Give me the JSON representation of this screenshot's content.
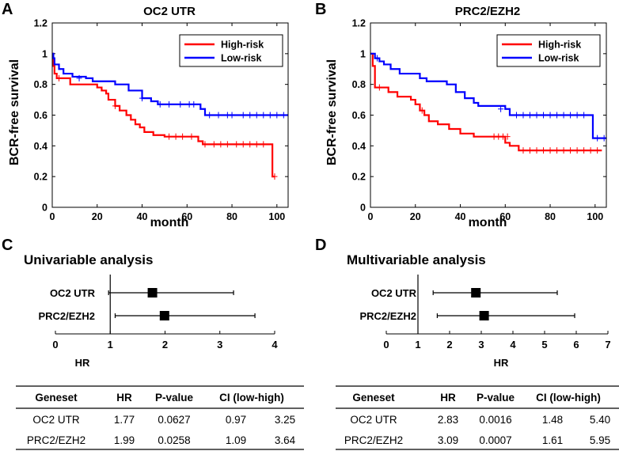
{
  "panels": {
    "a": "A",
    "b": "B",
    "c": "C",
    "d": "D"
  },
  "colors": {
    "high": "#ff0000",
    "low": "#0000ff",
    "axis": "#000000"
  },
  "chart_data": [
    {
      "id": "km-oc2",
      "type": "line",
      "title": "OC2 UTR",
      "xlabel": "month",
      "ylabel": "BCR-free survival",
      "xlim": [
        0,
        105
      ],
      "ylim": [
        0,
        1.2
      ],
      "xticks": [
        0,
        20,
        40,
        60,
        80,
        100
      ],
      "yticks": [
        0,
        0.2,
        0.4,
        0.6,
        0.8,
        1,
        1.2
      ],
      "legend": [
        "High-risk",
        "Low-risk"
      ],
      "series": [
        {
          "name": "High-risk",
          "color": "#ff0000",
          "steps": [
            [
              0,
              1
            ],
            [
              0.5,
              0.92
            ],
            [
              1,
              0.87
            ],
            [
              2,
              0.84
            ],
            [
              5,
              0.84
            ],
            [
              8,
              0.8
            ],
            [
              20,
              0.78
            ],
            [
              22,
              0.76
            ],
            [
              24,
              0.74
            ],
            [
              25,
              0.7
            ],
            [
              28,
              0.66
            ],
            [
              30,
              0.63
            ],
            [
              33,
              0.6
            ],
            [
              35,
              0.57
            ],
            [
              37,
              0.54
            ],
            [
              39,
              0.52
            ],
            [
              41,
              0.49
            ],
            [
              45,
              0.47
            ],
            [
              50,
              0.46
            ],
            [
              65,
              0.43
            ],
            [
              67,
              0.41
            ],
            [
              97,
              0.41
            ],
            [
              98,
              0.2
            ],
            [
              99,
              0.2
            ]
          ],
          "censors": [
            [
              3,
              0.84
            ],
            [
              28,
              0.66
            ],
            [
              52,
              0.46
            ],
            [
              55,
              0.46
            ],
            [
              58,
              0.46
            ],
            [
              62,
              0.46
            ],
            [
              68,
              0.41
            ],
            [
              72,
              0.41
            ],
            [
              75,
              0.41
            ],
            [
              78,
              0.41
            ],
            [
              82,
              0.41
            ],
            [
              85,
              0.41
            ],
            [
              88,
              0.41
            ],
            [
              91,
              0.41
            ],
            [
              94,
              0.41
            ],
            [
              99,
              0.2
            ]
          ]
        },
        {
          "name": "Low-risk",
          "color": "#0000ff",
          "steps": [
            [
              0,
              1
            ],
            [
              0.5,
              0.97
            ],
            [
              1,
              0.93
            ],
            [
              3,
              0.9
            ],
            [
              5,
              0.87
            ],
            [
              9,
              0.85
            ],
            [
              15,
              0.84
            ],
            [
              18,
              0.82
            ],
            [
              28,
              0.8
            ],
            [
              34,
              0.76
            ],
            [
              40,
              0.71
            ],
            [
              44,
              0.69
            ],
            [
              47,
              0.67
            ],
            [
              66,
              0.64
            ],
            [
              68,
              0.6
            ],
            [
              105,
              0.6
            ]
          ],
          "censors": [
            [
              12,
              0.84
            ],
            [
              40,
              0.71
            ],
            [
              48,
              0.67
            ],
            [
              52,
              0.67
            ],
            [
              57,
              0.67
            ],
            [
              61,
              0.67
            ],
            [
              63,
              0.67
            ],
            [
              70,
              0.6
            ],
            [
              74,
              0.6
            ],
            [
              78,
              0.6
            ],
            [
              80,
              0.6
            ],
            [
              85,
              0.6
            ],
            [
              88,
              0.6
            ],
            [
              91,
              0.6
            ],
            [
              94,
              0.6
            ],
            [
              97,
              0.6
            ],
            [
              100,
              0.6
            ],
            [
              103,
              0.6
            ]
          ]
        }
      ]
    },
    {
      "id": "km-prc2",
      "type": "line",
      "title": "PRC2/EZH2",
      "xlabel": "month",
      "ylabel": "BCR-free survival",
      "xlim": [
        0,
        105
      ],
      "ylim": [
        0,
        1.2
      ],
      "xticks": [
        0,
        20,
        40,
        60,
        80,
        100
      ],
      "yticks": [
        0,
        0.2,
        0.4,
        0.6,
        0.8,
        1,
        1.2
      ],
      "legend": [
        "High-risk",
        "Low-risk"
      ],
      "series": [
        {
          "name": "High-risk",
          "color": "#ff0000",
          "steps": [
            [
              0,
              1
            ],
            [
              1,
              0.92
            ],
            [
              2,
              0.78
            ],
            [
              8,
              0.75
            ],
            [
              12,
              0.72
            ],
            [
              18,
              0.7
            ],
            [
              20,
              0.67
            ],
            [
              22,
              0.63
            ],
            [
              24,
              0.6
            ],
            [
              26,
              0.56
            ],
            [
              30,
              0.54
            ],
            [
              35,
              0.51
            ],
            [
              40,
              0.48
            ],
            [
              46,
              0.46
            ],
            [
              60,
              0.42
            ],
            [
              62,
              0.4
            ],
            [
              66,
              0.37
            ],
            [
              103,
              0.37
            ]
          ],
          "censors": [
            [
              4,
              0.78
            ],
            [
              23,
              0.63
            ],
            [
              55,
              0.46
            ],
            [
              57,
              0.46
            ],
            [
              59,
              0.46
            ],
            [
              61,
              0.46
            ],
            [
              68,
              0.37
            ],
            [
              71,
              0.37
            ],
            [
              74,
              0.37
            ],
            [
              77,
              0.37
            ],
            [
              80,
              0.37
            ],
            [
              83,
              0.37
            ],
            [
              86,
              0.37
            ],
            [
              89,
              0.37
            ],
            [
              92,
              0.37
            ],
            [
              95,
              0.37
            ],
            [
              98,
              0.37
            ],
            [
              101,
              0.37
            ]
          ]
        },
        {
          "name": "Low-risk",
          "color": "#0000ff",
          "steps": [
            [
              0,
              1
            ],
            [
              2,
              0.97
            ],
            [
              4,
              0.95
            ],
            [
              6,
              0.93
            ],
            [
              9,
              0.9
            ],
            [
              13,
              0.87
            ],
            [
              22,
              0.84
            ],
            [
              25,
              0.82
            ],
            [
              34,
              0.8
            ],
            [
              38,
              0.75
            ],
            [
              42,
              0.71
            ],
            [
              46,
              0.68
            ],
            [
              48,
              0.66
            ],
            [
              60,
              0.64
            ],
            [
              62,
              0.6
            ],
            [
              98,
              0.6
            ],
            [
              99,
              0.45
            ],
            [
              105,
              0.45
            ]
          ],
          "censors": [
            [
              3,
              0.97
            ],
            [
              58,
              0.64
            ],
            [
              65,
              0.6
            ],
            [
              68,
              0.6
            ],
            [
              71,
              0.6
            ],
            [
              74,
              0.6
            ],
            [
              77,
              0.6
            ],
            [
              80,
              0.6
            ],
            [
              83,
              0.6
            ],
            [
              86,
              0.6
            ],
            [
              89,
              0.6
            ],
            [
              92,
              0.6
            ],
            [
              95,
              0.6
            ],
            [
              101,
              0.45
            ],
            [
              104,
              0.45
            ]
          ]
        }
      ]
    },
    {
      "id": "forest-uni",
      "type": "scatter",
      "title": "Univariable analysis",
      "xlabel": "HR",
      "xlim": [
        0,
        4
      ],
      "xticks": [
        0,
        1,
        2,
        3,
        4
      ],
      "reference_x": 1,
      "rows": [
        {
          "label": "OC2 UTR",
          "hr": 1.77,
          "low": 0.97,
          "high": 3.25
        },
        {
          "label": "PRC2/EZH2",
          "hr": 1.99,
          "low": 1.09,
          "high": 3.64
        }
      ]
    },
    {
      "id": "forest-multi",
      "type": "scatter",
      "title": "Multivariable analysis",
      "xlabel": "HR",
      "xlim": [
        0,
        7
      ],
      "xticks": [
        0,
        1,
        2,
        3,
        4,
        5,
        6,
        7
      ],
      "reference_x": 1,
      "rows": [
        {
          "label": "OC2 UTR",
          "hr": 2.83,
          "low": 1.48,
          "high": 5.4
        },
        {
          "label": "PRC2/EZH2",
          "hr": 3.09,
          "low": 1.61,
          "high": 5.95
        }
      ]
    }
  ],
  "tables": {
    "uni": {
      "headers": [
        "Geneset",
        "HR",
        "P-value",
        "CI (low-high)"
      ],
      "rows": [
        [
          "OC2 UTR",
          "1.77",
          "0.0627",
          "0.97",
          "3.25"
        ],
        [
          "PRC2/EZH2",
          "1.99",
          "0.0258",
          "1.09",
          "3.64"
        ]
      ]
    },
    "multi": {
      "headers": [
        "Geneset",
        "HR",
        "P-value",
        "CI (low-high)"
      ],
      "rows": [
        [
          "OC2 UTR",
          "2.83",
          "0.0016",
          "1.48",
          "5.40"
        ],
        [
          "PRC2/EZH2",
          "3.09",
          "0.0007",
          "1.61",
          "5.95"
        ]
      ]
    }
  }
}
